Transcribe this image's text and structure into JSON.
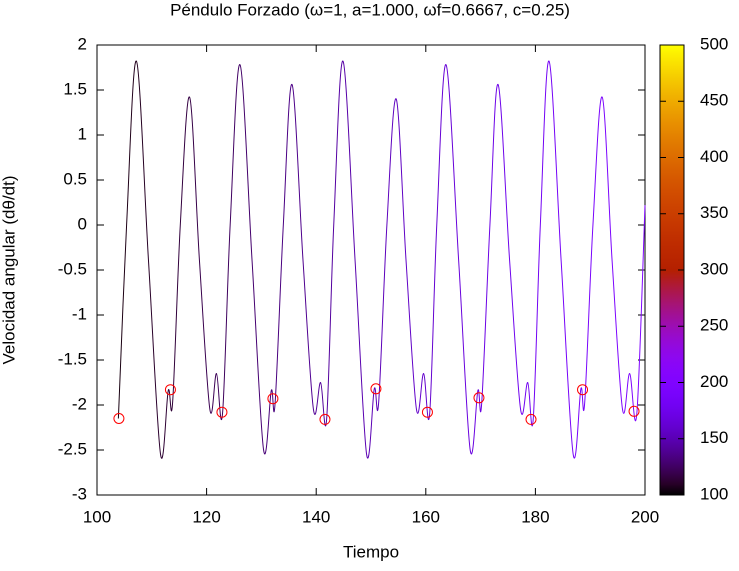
{
  "chart_data": {
    "type": "line",
    "title": "Péndulo Forzado (ω=1, a=1.000, ωf=0.6667, c=0.25)",
    "x_label": "Tiempo",
    "y_label": "Velocidad angular (dθ/dt)",
    "xlim": [
      100,
      200
    ],
    "xticks": [
      100,
      120,
      140,
      160,
      180,
      200
    ],
    "ylim": [
      -3,
      2
    ],
    "yticks": [
      -3,
      -2.5,
      -2,
      -1.5,
      -1,
      -0.5,
      0,
      0.5,
      1,
      1.5,
      2
    ],
    "colorbar": {
      "lim": [
        100,
        500
      ],
      "ticks": [
        100,
        150,
        200,
        250,
        300,
        350,
        400,
        450,
        500
      ],
      "palette": "rgbformulae 7,5,15",
      "color_by": "x"
    },
    "series": [
      {
        "color": "palette",
        "style": "line",
        "x": [
          103.9,
          105.4,
          107.2,
          109.4,
          111.6,
          113.0,
          113.8,
          115.2,
          116.9,
          118.7,
          120.6,
          121.8,
          122.9,
          124.3,
          126.1,
          128.3,
          130.4,
          131.8,
          132.5,
          134.0,
          135.6,
          137.6,
          139.5,
          140.8,
          141.9,
          143.2,
          144.9,
          147.1,
          149.2,
          150.6,
          151.4,
          152.9,
          154.6,
          156.4,
          158.3,
          159.6,
          160.7,
          162.0,
          163.7,
          166.0,
          168.1,
          169.5,
          170.2,
          171.7,
          173.2,
          175.3,
          177.3,
          178.6,
          179.6,
          180.9,
          182.5,
          184.7,
          186.9,
          188.3,
          189.0,
          190.5,
          192.2,
          194.0,
          195.9,
          197.2,
          198.5,
          200.0
        ],
        "values": [
          -2.15,
          0.0,
          1.82,
          -0.4,
          -2.55,
          -1.84,
          -1.97,
          0.0,
          1.42,
          -0.4,
          -2.05,
          -1.65,
          -2.1,
          0.0,
          1.78,
          -0.4,
          -2.5,
          -1.84,
          -1.98,
          0.0,
          1.56,
          -0.4,
          -2.05,
          -1.75,
          -2.16,
          0.0,
          1.82,
          -0.4,
          -2.55,
          -1.82,
          -1.97,
          0.0,
          1.4,
          -0.4,
          -2.05,
          -1.65,
          -2.1,
          0.0,
          1.78,
          -0.4,
          -2.5,
          -1.84,
          -1.98,
          0.0,
          1.56,
          -0.4,
          -2.05,
          -1.75,
          -2.16,
          0.0,
          1.82,
          -0.4,
          -2.55,
          -1.82,
          -1.97,
          0.0,
          1.42,
          -0.4,
          -2.05,
          -1.65,
          -2.1,
          0.22
        ]
      },
      {
        "color": "#ff0000",
        "style": "circles",
        "x": [
          104.0,
          113.4,
          122.8,
          132.1,
          141.6,
          150.9,
          160.3,
          169.7,
          179.2,
          188.6,
          198.0
        ],
        "values": [
          -2.15,
          -1.83,
          -2.08,
          -1.93,
          -2.16,
          -1.82,
          -2.08,
          -1.92,
          -2.16,
          -1.83,
          -2.07
        ]
      }
    ]
  }
}
